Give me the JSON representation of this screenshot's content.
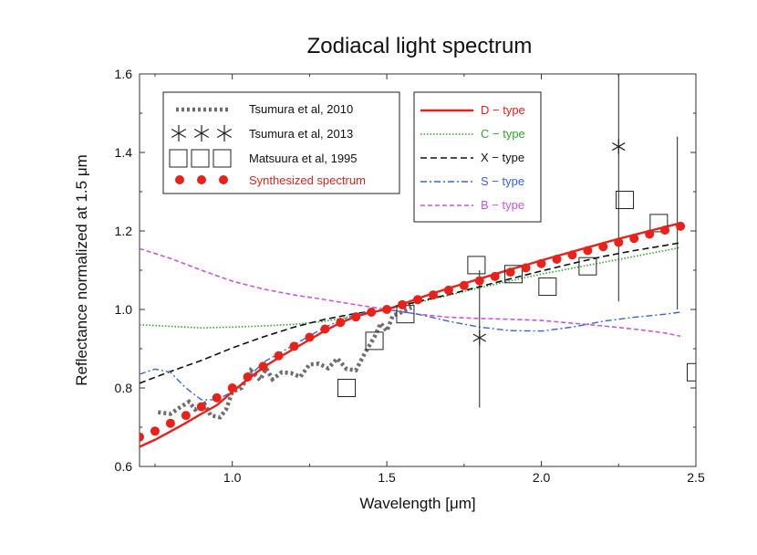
{
  "chart_data": {
    "type": "line",
    "title": "Zodiacal light spectrum",
    "xlabel": "Wavelength [μm]",
    "ylabel": "Reflectance normalized at 1.5 μm",
    "xlim": [
      0.7,
      2.5
    ],
    "ylim": [
      0.6,
      1.6
    ],
    "xticks": [
      1.0,
      1.5,
      2.0,
      2.5
    ],
    "xtick_labels": [
      "1.0",
      "1.5",
      "2.0",
      "2.5"
    ],
    "yticks": [
      0.6,
      0.8,
      1.0,
      1.2,
      1.4,
      1.6
    ],
    "ytick_labels": [
      "0.6",
      "0.8",
      "1.0",
      "1.2",
      "1.4",
      "1.6"
    ],
    "grid": false,
    "legend_observations": {
      "placement": "top-left",
      "entries": [
        "Tsumura et al, 2010",
        "Tsumura et al, 2013",
        "Matsuura et al, 1995",
        "Synthesized spectrum"
      ]
    },
    "legend_types": {
      "placement": "top-center",
      "entries": [
        "D − type",
        "C − type",
        "X − type",
        "S − type",
        "B − type"
      ]
    },
    "series": [
      {
        "name": "D − type",
        "style": "solid",
        "color": "#e8221b",
        "x": [
          0.7,
          0.75,
          0.8,
          0.85,
          0.9,
          0.95,
          1.0,
          1.05,
          1.1,
          1.15,
          1.2,
          1.25,
          1.3,
          1.35,
          1.4,
          1.45,
          1.5,
          1.55,
          1.6,
          1.65,
          1.7,
          1.75,
          1.8,
          1.85,
          1.9,
          1.95,
          2.0,
          2.05,
          2.1,
          2.15,
          2.2,
          2.25,
          2.3,
          2.35,
          2.4,
          2.45
        ],
        "y": [
          0.65,
          0.668,
          0.689,
          0.711,
          0.734,
          0.756,
          0.79,
          0.822,
          0.852,
          0.877,
          0.9,
          0.923,
          0.946,
          0.966,
          0.982,
          0.993,
          1.0,
          1.013,
          1.028,
          1.041,
          1.054,
          1.066,
          1.078,
          1.09,
          1.102,
          1.113,
          1.125,
          1.136,
          1.147,
          1.158,
          1.169,
          1.18,
          1.19,
          1.2,
          1.21,
          1.22
        ]
      },
      {
        "name": "C − type",
        "style": "dotted",
        "color": "#2fa82f",
        "x": [
          0.7,
          0.8,
          0.9,
          1.0,
          1.1,
          1.2,
          1.3,
          1.4,
          1.5,
          1.6,
          1.7,
          1.8,
          1.9,
          2.0,
          2.1,
          2.2,
          2.3,
          2.4,
          2.45
        ],
        "y": [
          0.961,
          0.957,
          0.953,
          0.955,
          0.958,
          0.962,
          0.97,
          0.984,
          1.0,
          1.017,
          1.036,
          1.055,
          1.073,
          1.09,
          1.105,
          1.12,
          1.135,
          1.15,
          1.158
        ]
      },
      {
        "name": "X − type",
        "style": "dashed",
        "color": "#111111",
        "x": [
          0.7,
          0.8,
          0.9,
          1.0,
          1.1,
          1.2,
          1.3,
          1.4,
          1.5,
          1.6,
          1.7,
          1.8,
          1.9,
          2.0,
          2.1,
          2.2,
          2.3,
          2.4,
          2.45
        ],
        "y": [
          0.812,
          0.842,
          0.87,
          0.902,
          0.93,
          0.955,
          0.975,
          0.99,
          1.0,
          1.02,
          1.038,
          1.058,
          1.078,
          1.098,
          1.117,
          1.135,
          1.15,
          1.163,
          1.17
        ]
      },
      {
        "name": "S − type",
        "style": "dashdot",
        "color": "#3a63d9",
        "x": [
          0.7,
          0.75,
          0.8,
          0.85,
          0.9,
          0.95,
          1.0,
          1.05,
          1.1,
          1.2,
          1.3,
          1.4,
          1.5,
          1.6,
          1.7,
          1.8,
          1.9,
          2.0,
          2.1,
          2.2,
          2.3,
          2.4,
          2.45
        ],
        "y": [
          0.835,
          0.848,
          0.84,
          0.8,
          0.77,
          0.77,
          0.79,
          0.825,
          0.865,
          0.91,
          0.955,
          0.988,
          1.0,
          0.988,
          0.97,
          0.955,
          0.946,
          0.945,
          0.955,
          0.97,
          0.98,
          0.988,
          0.993
        ]
      },
      {
        "name": "B − type",
        "style": "dashed",
        "color": "#cc55dd",
        "x": [
          0.7,
          0.8,
          0.9,
          1.0,
          1.1,
          1.2,
          1.3,
          1.4,
          1.5,
          1.6,
          1.7,
          1.8,
          1.9,
          2.0,
          2.1,
          2.2,
          2.3,
          2.4,
          2.45
        ],
        "y": [
          1.155,
          1.13,
          1.1,
          1.072,
          1.052,
          1.037,
          1.025,
          1.012,
          1.0,
          0.988,
          0.98,
          0.977,
          0.975,
          0.972,
          0.965,
          0.958,
          0.95,
          0.94,
          0.932
        ]
      },
      {
        "name": "Tsumura et al, 2010",
        "style": "thick-dotted",
        "color": "#6d6d6d",
        "x": [
          0.76,
          0.8,
          0.83,
          0.86,
          0.88,
          0.91,
          0.93,
          0.96,
          0.98,
          1.0,
          1.03,
          1.06,
          1.09,
          1.11,
          1.13,
          1.16,
          1.19,
          1.22,
          1.25,
          1.28,
          1.31,
          1.34,
          1.37,
          1.4,
          1.43,
          1.46,
          1.48,
          1.5,
          1.52,
          1.54,
          1.56,
          1.58
        ],
        "y": [
          0.738,
          0.734,
          0.75,
          0.765,
          0.745,
          0.76,
          0.73,
          0.725,
          0.745,
          0.79,
          0.8,
          0.845,
          0.82,
          0.85,
          0.822,
          0.84,
          0.838,
          0.828,
          0.86,
          0.862,
          0.85,
          0.875,
          0.848,
          0.845,
          0.89,
          0.93,
          0.965,
          0.945,
          0.985,
          0.99,
          0.998,
          1.005
        ]
      },
      {
        "name": "Tsumura et al, 2013",
        "marker": "asterisk",
        "color": "#222222",
        "x": [
          1.8,
          2.25
        ],
        "y": [
          0.928,
          1.415
        ],
        "yerr_low": [
          0.75,
          1.02
        ],
        "yerr_high": [
          1.1,
          1.6
        ]
      },
      {
        "name": "Matsuura et al, 1995",
        "marker": "open-square",
        "color": "#222222",
        "x": [
          1.37,
          1.46,
          1.56,
          1.79,
          1.91,
          2.02,
          2.15,
          2.27,
          2.38,
          2.5
        ],
        "y": [
          0.8,
          0.92,
          0.988,
          1.113,
          1.09,
          1.058,
          1.11,
          1.279,
          1.22,
          0.84
        ],
        "yerr_low": [
          null,
          null,
          null,
          null,
          null,
          null,
          null,
          null,
          null,
          null
        ],
        "yerr_high": [
          null,
          null,
          null,
          null,
          null,
          null,
          null,
          null,
          null,
          null
        ],
        "errbar_x": [
          2.44
        ],
        "errbar_low": [
          1.0
        ],
        "errbar_high": [
          1.44
        ]
      },
      {
        "name": "Synthesized spectrum",
        "marker": "filled-circle",
        "color": "#e8221b",
        "x": [
          0.7,
          0.75,
          0.8,
          0.85,
          0.9,
          0.95,
          1.0,
          1.05,
          1.1,
          1.15,
          1.2,
          1.25,
          1.3,
          1.35,
          1.4,
          1.45,
          1.5,
          1.55,
          1.6,
          1.65,
          1.7,
          1.75,
          1.8,
          1.85,
          1.9,
          1.95,
          2.0,
          2.05,
          2.1,
          2.15,
          2.2,
          2.25,
          2.3,
          2.35,
          2.4,
          2.45
        ],
        "y": [
          0.675,
          0.69,
          0.71,
          0.73,
          0.752,
          0.775,
          0.8,
          0.828,
          0.855,
          0.882,
          0.906,
          0.929,
          0.95,
          0.967,
          0.981,
          0.993,
          1.0,
          1.012,
          1.025,
          1.037,
          1.049,
          1.061,
          1.073,
          1.084,
          1.095,
          1.106,
          1.117,
          1.128,
          1.139,
          1.15,
          1.16,
          1.171,
          1.181,
          1.192,
          1.202,
          1.212
        ]
      }
    ]
  }
}
